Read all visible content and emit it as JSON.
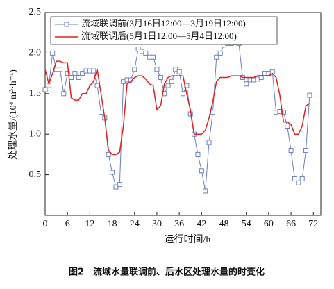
{
  "chart_data": {
    "type": "line",
    "x_label": "运行时间/h",
    "y_label": "处理水量/(10⁴ m³·h⁻¹)",
    "caption": "图2　流域水量联调前、后水区处理水量的时变化",
    "x": [
      0,
      1,
      2,
      3,
      4,
      5,
      6,
      7,
      8,
      9,
      10,
      11,
      12,
      13,
      14,
      15,
      16,
      17,
      18,
      19,
      20,
      21,
      22,
      23,
      24,
      25,
      26,
      27,
      28,
      29,
      30,
      31,
      32,
      33,
      34,
      35,
      36,
      37,
      38,
      39,
      40,
      41,
      42,
      43,
      44,
      45,
      46,
      47,
      48,
      49,
      50,
      51,
      52,
      53,
      54,
      55,
      56,
      57,
      58,
      59,
      60,
      61,
      62,
      63,
      64,
      65,
      66,
      67,
      68,
      69,
      70,
      71
    ],
    "series": [
      {
        "name": "流域联调前(3月16日12:00—3月19日12:00)",
        "color": "#6a7fc2",
        "marker": "square",
        "values": [
          1.55,
          1.6,
          2.0,
          1.8,
          1.8,
          1.5,
          1.75,
          1.7,
          1.75,
          1.7,
          1.75,
          1.78,
          1.78,
          1.78,
          1.6,
          1.27,
          1.2,
          0.75,
          0.53,
          0.35,
          0.38,
          1.65,
          1.67,
          1.67,
          1.8,
          2.05,
          2.02,
          2.0,
          1.95,
          1.95,
          1.8,
          1.7,
          1.5,
          1.6,
          1.65,
          1.8,
          1.77,
          1.5,
          1.6,
          1.25,
          1.0,
          0.75,
          0.55,
          0.3,
          0.9,
          1.27,
          1.95,
          2.0,
          2.1,
          2.12,
          2.12,
          2.13,
          2.12,
          1.7,
          1.62,
          1.67,
          1.67,
          1.68,
          1.7,
          1.75,
          1.75,
          1.77,
          1.27,
          1.28,
          1.27,
          1.1,
          0.8,
          0.45,
          0.4,
          0.45,
          0.8,
          1.48
        ]
      },
      {
        "name": "流域联调后(5月1日12:00—5月4日12:00)",
        "color": "#e02020",
        "marker": "none",
        "values": [
          1.8,
          1.62,
          1.75,
          1.9,
          1.9,
          1.88,
          1.88,
          1.45,
          1.42,
          1.42,
          1.5,
          1.5,
          1.6,
          1.65,
          1.8,
          1.5,
          1.2,
          0.8,
          0.75,
          0.75,
          0.78,
          1.1,
          1.62,
          1.65,
          1.7,
          1.72,
          1.72,
          1.68,
          1.62,
          1.6,
          1.3,
          1.35,
          1.62,
          1.7,
          1.72,
          1.72,
          1.72,
          1.72,
          1.5,
          1.3,
          1.0,
          1.0,
          1.0,
          1.05,
          1.2,
          1.4,
          1.65,
          1.7,
          1.7,
          1.7,
          1.72,
          1.72,
          1.72,
          1.7,
          1.7,
          1.7,
          1.7,
          1.72,
          1.72,
          1.72,
          1.72,
          1.75,
          1.7,
          1.48,
          1.15,
          1.15,
          1.12,
          1.0,
          1.0,
          1.1,
          1.35,
          1.38
        ]
      }
    ],
    "xlim": [
      0,
      74
    ],
    "xticks": [
      0,
      6,
      12,
      18,
      24,
      30,
      36,
      42,
      48,
      54,
      60,
      66,
      72
    ],
    "ylim": [
      0,
      2.5
    ],
    "yticks": [
      0.5,
      {
        "value": 1,
        "label": "1.0"
      },
      1.5,
      {
        "value": 2,
        "label": "2.0"
      },
      2.5
    ],
    "legend": "upper left"
  }
}
